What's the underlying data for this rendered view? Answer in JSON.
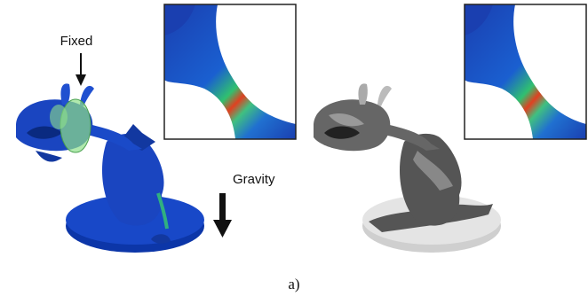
{
  "labels": {
    "fixed": "Fixed",
    "gravity": "Gravity",
    "caption": "a)"
  }
}
